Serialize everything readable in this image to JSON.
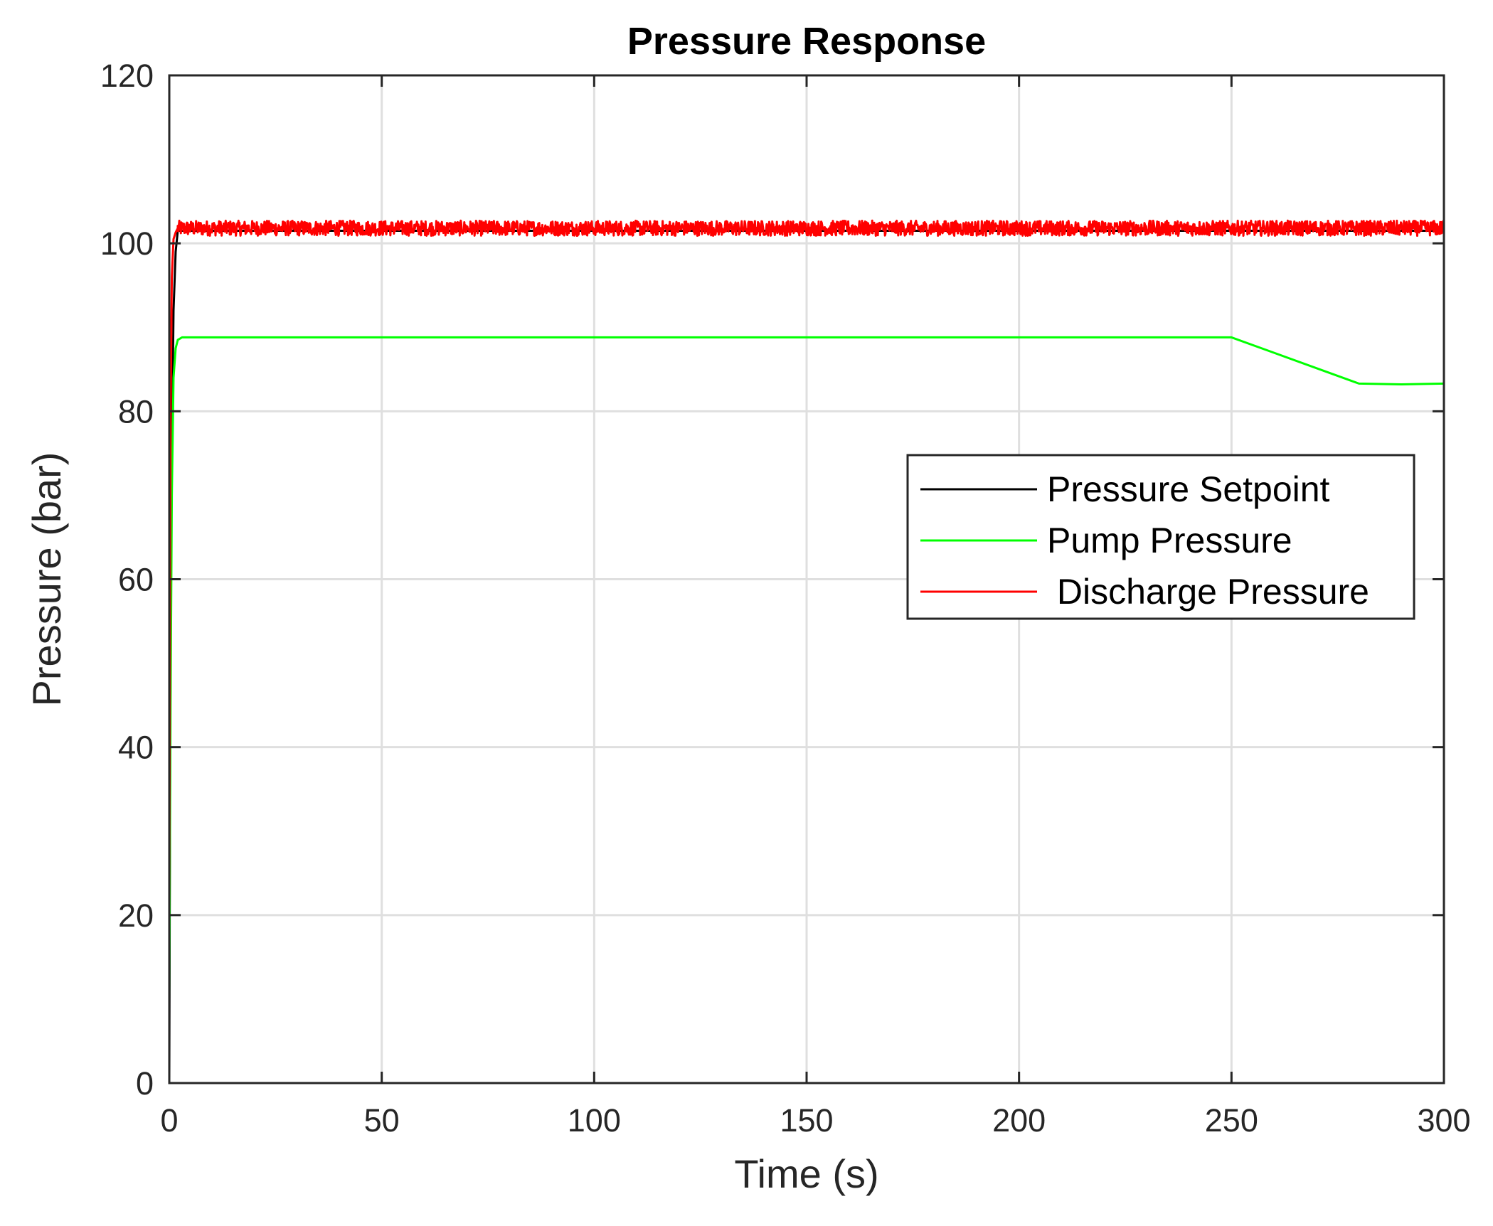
{
  "chart_data": {
    "type": "line",
    "title": "Pressure Response",
    "xlabel": "Time (s)",
    "ylabel": "Pressure (bar)",
    "xlim": [
      0,
      300
    ],
    "ylim": [
      0,
      120
    ],
    "xticks": [
      0,
      50,
      100,
      150,
      200,
      250,
      300
    ],
    "yticks": [
      0,
      20,
      40,
      60,
      80,
      100,
      120
    ],
    "xtick_labels": [
      "0",
      "50",
      "100",
      "150",
      "200",
      "250",
      "300"
    ],
    "ytick_labels": [
      "0",
      "20",
      "40",
      "60",
      "80",
      "100",
      "120"
    ],
    "grid": true,
    "legend_position": "right",
    "series": [
      {
        "name": "Pressure Setpoint",
        "legend_label": "Pressure Setpoint",
        "color": "#000000",
        "x": [
          0,
          0.2,
          0.5,
          1,
          1.5,
          2,
          300
        ],
        "y": [
          0,
          40,
          70,
          92,
          99,
          101.5,
          101.5
        ]
      },
      {
        "name": "Pump Pressure",
        "legend_label": "Pump Pressure",
        "color": "#00ff00",
        "x": [
          0,
          0.1,
          0.3,
          0.6,
          1,
          1.5,
          2,
          3,
          5,
          50,
          100,
          150,
          200,
          250,
          280,
          290,
          300
        ],
        "y": [
          10,
          22,
          45,
          70,
          84,
          87.5,
          88.5,
          88.8,
          88.8,
          88.8,
          88.8,
          88.8,
          88.8,
          88.8,
          83.3,
          83.2,
          83.3
        ]
      },
      {
        "name": "Discharge Pressure",
        "legend_label": " Discharge Pressure",
        "color": "#ff0000",
        "x": [
          0,
          0.1,
          0.3,
          0.6,
          1,
          1.5,
          2,
          300
        ],
        "y": [
          20,
          40,
          80,
          96,
          100.5,
          101.3,
          101.8,
          101.8
        ],
        "noise_amplitude": 0.9
      }
    ]
  }
}
